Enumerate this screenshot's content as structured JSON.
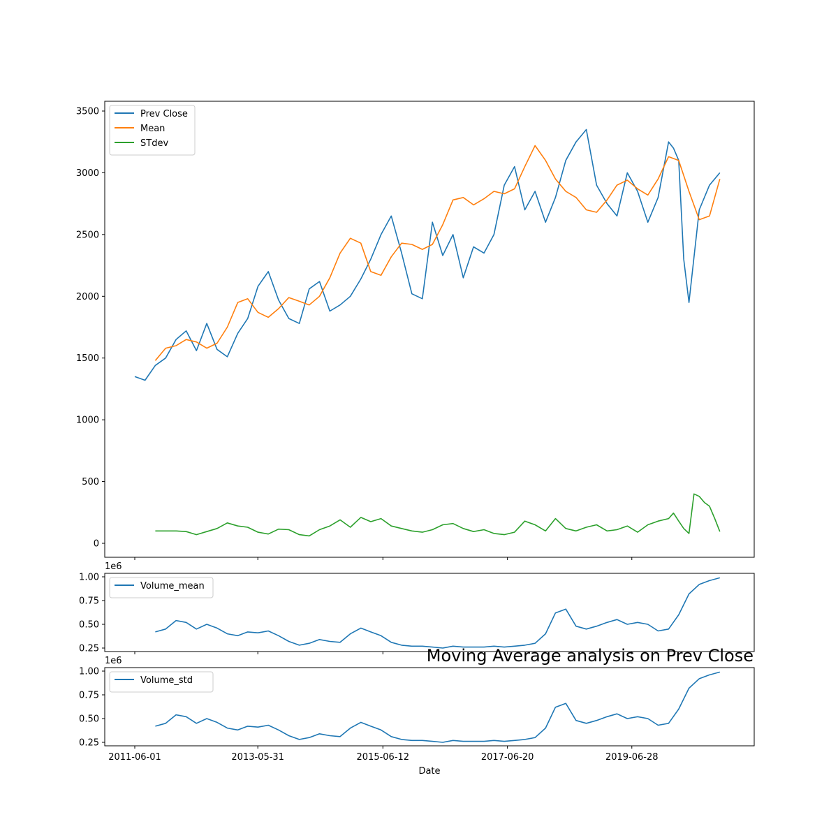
{
  "title": "Moving Average analysis on Prev Close",
  "xlabel": "Date",
  "x_ticks": [
    "2011-06-01",
    "2013-05-31",
    "2015-06-12",
    "2017-06-20",
    "2019-06-28"
  ],
  "x_range": [
    "2011-06-01",
    "2020-12-31"
  ],
  "colors": {
    "prev_close": "#1f77b4",
    "mean": "#ff7f0e",
    "stdev": "#2ca02c",
    "volume": "#1f77b4"
  },
  "chart_data": [
    {
      "type": "line",
      "ylim": [
        -120,
        3580
      ],
      "yticks": [
        0,
        500,
        1000,
        1500,
        2000,
        2500,
        3000,
        3500
      ],
      "legend": "top-left",
      "series": [
        {
          "name": "Prev Close",
          "x": [
            "2011-06-01",
            "2011-08-01",
            "2011-10-01",
            "2011-12-01",
            "2012-02-01",
            "2012-04-01",
            "2012-06-01",
            "2012-08-01",
            "2012-10-01",
            "2012-12-01",
            "2013-02-01",
            "2013-04-01",
            "2013-06-01",
            "2013-08-01",
            "2013-10-01",
            "2013-12-01",
            "2014-02-01",
            "2014-04-01",
            "2014-06-01",
            "2014-08-01",
            "2014-10-01",
            "2014-12-01",
            "2015-02-01",
            "2015-04-01",
            "2015-06-01",
            "2015-08-01",
            "2015-10-01",
            "2015-12-01",
            "2016-02-01",
            "2016-04-01",
            "2016-06-01",
            "2016-08-01",
            "2016-10-01",
            "2016-12-01",
            "2017-02-01",
            "2017-04-01",
            "2017-06-01",
            "2017-08-01",
            "2017-10-01",
            "2017-12-01",
            "2018-02-01",
            "2018-04-01",
            "2018-06-01",
            "2018-08-01",
            "2018-10-01",
            "2018-12-01",
            "2019-02-01",
            "2019-04-01",
            "2019-06-01",
            "2019-08-01",
            "2019-10-01",
            "2019-12-01",
            "2020-02-01",
            "2020-03-01",
            "2020-04-01",
            "2020-05-01",
            "2020-06-01",
            "2020-08-01",
            "2020-10-01",
            "2020-12-01"
          ],
          "values": [
            1350,
            1320,
            1440,
            1500,
            1650,
            1720,
            1560,
            1780,
            1570,
            1510,
            1700,
            1820,
            2080,
            2200,
            1970,
            1820,
            1780,
            2060,
            2120,
            1880,
            1930,
            2000,
            2140,
            2300,
            2500,
            2650,
            2350,
            2020,
            1980,
            2600,
            2330,
            2500,
            2150,
            2400,
            2350,
            2500,
            2900,
            3050,
            2700,
            2850,
            2600,
            2800,
            3100,
            3250,
            3350,
            2900,
            2750,
            2650,
            3000,
            2850,
            2600,
            2800,
            3250,
            3200,
            3100,
            2300,
            1950,
            2700,
            2900,
            3000
          ]
        },
        {
          "name": "Mean",
          "x": [
            "2011-10-01",
            "2011-12-01",
            "2012-02-01",
            "2012-04-01",
            "2012-06-01",
            "2012-08-01",
            "2012-10-01",
            "2012-12-01",
            "2013-02-01",
            "2013-04-01",
            "2013-06-01",
            "2013-08-01",
            "2013-10-01",
            "2013-12-01",
            "2014-02-01",
            "2014-04-01",
            "2014-06-01",
            "2014-08-01",
            "2014-10-01",
            "2014-12-01",
            "2015-02-01",
            "2015-04-01",
            "2015-06-01",
            "2015-08-01",
            "2015-10-01",
            "2015-12-01",
            "2016-02-01",
            "2016-04-01",
            "2016-06-01",
            "2016-08-01",
            "2016-10-01",
            "2016-12-01",
            "2017-02-01",
            "2017-04-01",
            "2017-06-01",
            "2017-08-01",
            "2017-10-01",
            "2017-12-01",
            "2018-02-01",
            "2018-04-01",
            "2018-06-01",
            "2018-08-01",
            "2018-10-01",
            "2018-12-01",
            "2019-02-01",
            "2019-04-01",
            "2019-06-01",
            "2019-08-01",
            "2019-10-01",
            "2019-12-01",
            "2020-02-01",
            "2020-04-01",
            "2020-06-01",
            "2020-08-01",
            "2020-10-01",
            "2020-12-01"
          ],
          "values": [
            1480,
            1580,
            1600,
            1650,
            1630,
            1580,
            1620,
            1750,
            1950,
            1980,
            1870,
            1830,
            1900,
            1990,
            1960,
            1930,
            2000,
            2150,
            2350,
            2470,
            2430,
            2200,
            2170,
            2320,
            2430,
            2420,
            2380,
            2420,
            2580,
            2780,
            2800,
            2740,
            2790,
            2850,
            2830,
            2870,
            3050,
            3220,
            3100,
            2950,
            2850,
            2800,
            2700,
            2680,
            2780,
            2900,
            2940,
            2870,
            2820,
            2950,
            3130,
            3100,
            2850,
            2620,
            2650,
            2950
          ]
        },
        {
          "name": "STdev",
          "x": [
            "2011-10-01",
            "2011-12-01",
            "2012-02-01",
            "2012-04-01",
            "2012-06-01",
            "2012-08-01",
            "2012-10-01",
            "2012-12-01",
            "2013-02-01",
            "2013-04-01",
            "2013-06-01",
            "2013-08-01",
            "2013-10-01",
            "2013-12-01",
            "2014-02-01",
            "2014-04-01",
            "2014-06-01",
            "2014-08-01",
            "2014-10-01",
            "2014-12-01",
            "2015-02-01",
            "2015-04-01",
            "2015-06-01",
            "2015-08-01",
            "2015-10-01",
            "2015-12-01",
            "2016-02-01",
            "2016-04-01",
            "2016-06-01",
            "2016-08-01",
            "2016-10-01",
            "2016-12-01",
            "2017-02-01",
            "2017-04-01",
            "2017-06-01",
            "2017-08-01",
            "2017-10-01",
            "2017-12-01",
            "2018-02-01",
            "2018-04-01",
            "2018-06-01",
            "2018-08-01",
            "2018-10-01",
            "2018-12-01",
            "2019-02-01",
            "2019-04-01",
            "2019-06-01",
            "2019-08-01",
            "2019-10-01",
            "2019-12-01",
            "2020-02-01",
            "2020-03-01",
            "2020-04-01",
            "2020-05-01",
            "2020-06-01",
            "2020-07-01",
            "2020-08-01",
            "2020-09-01",
            "2020-10-01",
            "2020-11-01",
            "2020-12-01"
          ],
          "values": [
            100,
            100,
            100,
            95,
            70,
            95,
            120,
            165,
            140,
            130,
            90,
            75,
            115,
            110,
            70,
            60,
            110,
            140,
            190,
            130,
            210,
            175,
            200,
            140,
            120,
            100,
            90,
            110,
            150,
            160,
            120,
            95,
            110,
            80,
            70,
            90,
            180,
            150,
            100,
            200,
            120,
            100,
            130,
            150,
            100,
            110,
            140,
            90,
            150,
            180,
            200,
            245,
            180,
            120,
            80,
            400,
            380,
            330,
            300,
            200,
            95
          ]
        }
      ]
    },
    {
      "type": "line",
      "ylim": [
        0.22,
        1.02
      ],
      "yticks": [
        0.25,
        0.5,
        0.75,
        1.0
      ],
      "ytick_labels": [
        "0.25",
        "0.50",
        "0.75",
        "1.00"
      ],
      "offset_label": "1e6",
      "legend": "top-left",
      "series": [
        {
          "name": "Volume_mean",
          "x": [
            "2011-10-01",
            "2011-12-01",
            "2012-02-01",
            "2012-04-01",
            "2012-06-01",
            "2012-08-01",
            "2012-10-01",
            "2012-12-01",
            "2013-02-01",
            "2013-04-01",
            "2013-06-01",
            "2013-08-01",
            "2013-10-01",
            "2013-12-01",
            "2014-02-01",
            "2014-04-01",
            "2014-06-01",
            "2014-08-01",
            "2014-10-01",
            "2014-12-01",
            "2015-02-01",
            "2015-04-01",
            "2015-06-01",
            "2015-08-01",
            "2015-10-01",
            "2015-12-01",
            "2016-02-01",
            "2016-04-01",
            "2016-06-01",
            "2016-08-01",
            "2016-10-01",
            "2016-12-01",
            "2017-02-01",
            "2017-04-01",
            "2017-06-01",
            "2017-08-01",
            "2017-10-01",
            "2017-12-01",
            "2018-02-01",
            "2018-04-01",
            "2018-06-01",
            "2018-08-01",
            "2018-10-01",
            "2018-12-01",
            "2019-02-01",
            "2019-04-01",
            "2019-06-01",
            "2019-08-01",
            "2019-10-01",
            "2019-12-01",
            "2020-02-01",
            "2020-04-01",
            "2020-06-01",
            "2020-08-01",
            "2020-10-01",
            "2020-12-01"
          ],
          "values": [
            0.42,
            0.45,
            0.54,
            0.52,
            0.45,
            0.5,
            0.46,
            0.4,
            0.38,
            0.42,
            0.41,
            0.43,
            0.38,
            0.32,
            0.28,
            0.3,
            0.34,
            0.32,
            0.31,
            0.4,
            0.46,
            0.42,
            0.38,
            0.31,
            0.28,
            0.27,
            0.27,
            0.26,
            0.25,
            0.27,
            0.26,
            0.26,
            0.26,
            0.27,
            0.26,
            0.27,
            0.28,
            0.3,
            0.4,
            0.62,
            0.66,
            0.48,
            0.45,
            0.48,
            0.52,
            0.55,
            0.5,
            0.52,
            0.5,
            0.43,
            0.45,
            0.6,
            0.82,
            0.92,
            0.96,
            0.99
          ]
        }
      ]
    },
    {
      "type": "line",
      "ylim": [
        0.22,
        1.02
      ],
      "yticks": [
        0.25,
        0.5,
        0.75,
        1.0
      ],
      "ytick_labels": [
        "0.25",
        "0.50",
        "0.75",
        "1.00"
      ],
      "offset_label": "1e6",
      "legend": "top-left",
      "series": [
        {
          "name": "Volume_std",
          "x": [
            "2011-10-01",
            "2011-12-01",
            "2012-02-01",
            "2012-04-01",
            "2012-06-01",
            "2012-08-01",
            "2012-10-01",
            "2012-12-01",
            "2013-02-01",
            "2013-04-01",
            "2013-06-01",
            "2013-08-01",
            "2013-10-01",
            "2013-12-01",
            "2014-02-01",
            "2014-04-01",
            "2014-06-01",
            "2014-08-01",
            "2014-10-01",
            "2014-12-01",
            "2015-02-01",
            "2015-04-01",
            "2015-06-01",
            "2015-08-01",
            "2015-10-01",
            "2015-12-01",
            "2016-02-01",
            "2016-04-01",
            "2016-06-01",
            "2016-08-01",
            "2016-10-01",
            "2016-12-01",
            "2017-02-01",
            "2017-04-01",
            "2017-06-01",
            "2017-08-01",
            "2017-10-01",
            "2017-12-01",
            "2018-02-01",
            "2018-04-01",
            "2018-06-01",
            "2018-08-01",
            "2018-10-01",
            "2018-12-01",
            "2019-02-01",
            "2019-04-01",
            "2019-06-01",
            "2019-08-01",
            "2019-10-01",
            "2019-12-01",
            "2020-02-01",
            "2020-04-01",
            "2020-06-01",
            "2020-08-01",
            "2020-10-01",
            "2020-12-01"
          ],
          "values": [
            0.42,
            0.45,
            0.54,
            0.52,
            0.45,
            0.5,
            0.46,
            0.4,
            0.38,
            0.42,
            0.41,
            0.43,
            0.38,
            0.32,
            0.28,
            0.3,
            0.34,
            0.32,
            0.31,
            0.4,
            0.46,
            0.42,
            0.38,
            0.31,
            0.28,
            0.27,
            0.27,
            0.26,
            0.25,
            0.27,
            0.26,
            0.26,
            0.26,
            0.27,
            0.26,
            0.27,
            0.28,
            0.3,
            0.4,
            0.62,
            0.66,
            0.48,
            0.45,
            0.48,
            0.52,
            0.55,
            0.5,
            0.52,
            0.5,
            0.43,
            0.45,
            0.6,
            0.82,
            0.92,
            0.96,
            0.99
          ]
        }
      ]
    }
  ]
}
